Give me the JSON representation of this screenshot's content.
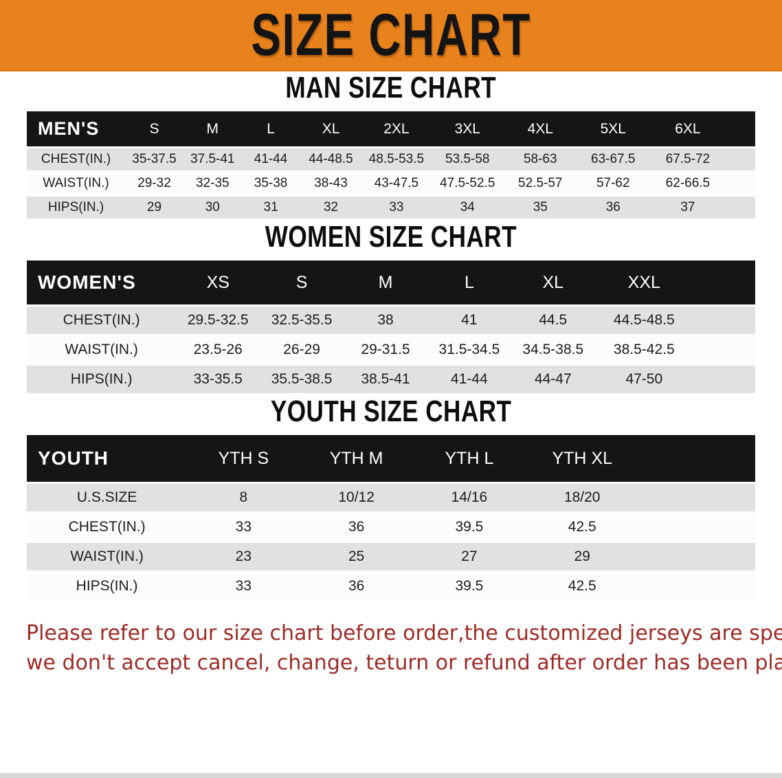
{
  "banner": {
    "title": "SIZE CHART"
  },
  "colors": {
    "banner_bg": "#e8821c",
    "table_header_bg": "#151515",
    "row_shaded": "#e1e1e1",
    "disclaimer_red": "#9e2a24"
  },
  "sections": [
    {
      "heading": "MAN SIZE CHART",
      "table": {
        "name": "mens",
        "header_label": "MEN'S",
        "columns": [
          "S",
          "M",
          "L",
          "XL",
          "2XL",
          "3XL",
          "4XL",
          "5XL",
          "6XL"
        ],
        "rows": [
          {
            "label": "CHEST(IN.)",
            "values": [
              "35-37.5",
              "37.5-41",
              "41-44",
              "44-48.5",
              "48.5-53.5",
              "53.5-58",
              "58-63",
              "63-67.5",
              "67.5-72"
            ]
          },
          {
            "label": "WAIST(IN.)",
            "values": [
              "29-32",
              "32-35",
              "35-38",
              "38-43",
              "43-47.5",
              "47.5-52.5",
              "52.5-57",
              "57-62",
              "62-66.5"
            ]
          },
          {
            "label": "HIPS(IN.)",
            "values": [
              "29",
              "30",
              "31",
              "32",
              "33",
              "34",
              "35",
              "36",
              "37"
            ]
          }
        ]
      }
    },
    {
      "heading": "WOMEN SIZE CHART",
      "table": {
        "name": "womens",
        "header_label": "WOMEN'S",
        "columns": [
          "XS",
          "S",
          "M",
          "L",
          "XL",
          "XXL"
        ],
        "rows": [
          {
            "label": "CHEST(IN.)",
            "values": [
              "29.5-32.5",
              "32.5-35.5",
              "38",
              "41",
              "44.5",
              "44.5-48.5"
            ]
          },
          {
            "label": "WAIST(IN.)",
            "values": [
              "23.5-26",
              "26-29",
              "29-31.5",
              "31.5-34.5",
              "34.5-38.5",
              "38.5-42.5"
            ]
          },
          {
            "label": "HIPS(IN.)",
            "values": [
              "33-35.5",
              "35.5-38.5",
              "38.5-41",
              "41-44",
              "44-47",
              "47-50"
            ]
          }
        ]
      }
    },
    {
      "heading": "YOUTH SIZE CHART",
      "table": {
        "name": "youth",
        "header_label": "YOUTH",
        "columns": [
          "YTH S",
          "YTH M",
          "YTH L",
          "YTH XL"
        ],
        "rows": [
          {
            "label": "U.S.SIZE",
            "values": [
              "8",
              "10/12",
              "14/16",
              "18/20"
            ]
          },
          {
            "label": "CHEST(IN.)",
            "values": [
              "33",
              "36",
              "39.5",
              "42.5"
            ]
          },
          {
            "label": "WAIST(IN.)",
            "values": [
              "23",
              "25",
              "27",
              "29"
            ]
          },
          {
            "label": "HIPS(IN.)",
            "values": [
              "33",
              "36",
              "39.5",
              "42.5"
            ]
          }
        ]
      }
    }
  ],
  "disclaimer": {
    "line1": "Please refer to our size chart before order,the customized jerseys are special products,",
    "line2": "we don't accept cancel, change, teturn or refund after order has been placed!"
  }
}
